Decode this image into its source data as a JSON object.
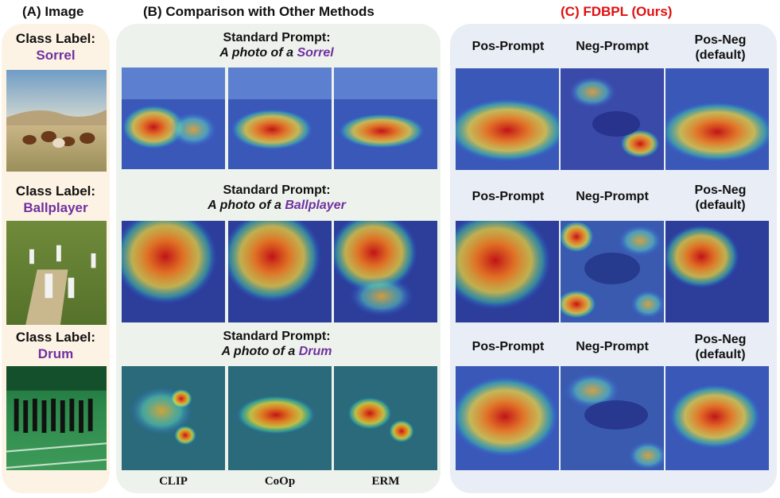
{
  "sections": {
    "a_title": "(A) Image",
    "b_title": "(B) Comparison with Other Methods",
    "c_title": "(C) FDBPL (Ours)"
  },
  "colors": {
    "title_c": "#e01010",
    "class_name": "#7030a0",
    "panel_a": "#fdf3e4",
    "panel_b": "#edf3ec",
    "panel_c": "#e9eef6"
  },
  "rows": [
    {
      "class_label": "Class Label:",
      "class_name": "Sorrel",
      "prompt_line1": "Standard Prompt:",
      "prompt_prefix": "A photo of a ",
      "prompt_class": "Sorrel",
      "pos_label": "Pos-Prompt",
      "neg_label": "Neg-Prompt",
      "posneg_label_1": "Pos-Neg",
      "posneg_label_2": "(default)"
    },
    {
      "class_label": "Class Label:",
      "class_name": "Ballplayer",
      "prompt_line1": "Standard Prompt:",
      "prompt_prefix": "A photo of a ",
      "prompt_class": "Ballplayer",
      "pos_label": "Pos-Prompt",
      "neg_label": "Neg-Prompt",
      "posneg_label_1": "Pos-Neg",
      "posneg_label_2": "(default)"
    },
    {
      "class_label": "Class Label:",
      "class_name": "Drum",
      "prompt_line1": "Standard Prompt:",
      "prompt_prefix": "A photo of a ",
      "prompt_class": "Drum",
      "pos_label": "Pos-Prompt",
      "neg_label": "Neg-Prompt",
      "posneg_label_1": "Pos-Neg",
      "posneg_label_2": "(default)"
    }
  ],
  "methods": [
    "CLIP",
    "CoOp",
    "ERM"
  ]
}
